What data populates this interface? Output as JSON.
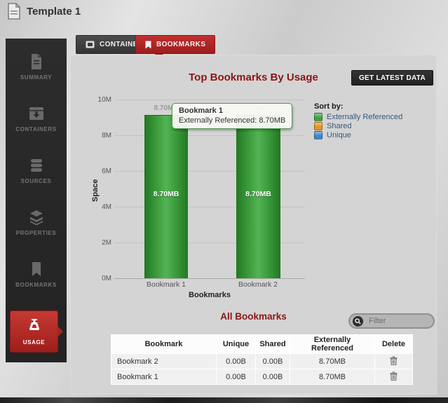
{
  "header": {
    "title": "Template 1"
  },
  "tabs": {
    "containers": "CONTAINERS",
    "bookmarks": "BOOKMARKS"
  },
  "sidebar": {
    "items": [
      {
        "label": "SUMMARY"
      },
      {
        "label": "CONTAINERS"
      },
      {
        "label": "SOURCES"
      },
      {
        "label": "PROPERTIES"
      },
      {
        "label": "BOOKMARKS"
      },
      {
        "label": "USAGE",
        "active": true
      }
    ]
  },
  "usage": {
    "chart_title": "Top Bookmarks By Usage",
    "get_latest_label": "GET LATEST DATA",
    "tooltip": {
      "title": "Bookmark 1",
      "detail": "Externally Referenced: 8.70MB"
    },
    "table": {
      "title": "All Bookmarks",
      "filter_placeholder": "Filter",
      "headers": [
        "Bookmark",
        "Unique",
        "Shared",
        "Externally Referenced",
        "Delete"
      ],
      "rows": [
        {
          "bookmark": "Bookmark 2",
          "unique": "0.00B",
          "shared": "0.00B",
          "externally_referenced": "8.70MB"
        },
        {
          "bookmark": "Bookmark 1",
          "unique": "0.00B",
          "shared": "0.00B",
          "externally_referenced": "8.70MB"
        }
      ]
    }
  },
  "chart_data": {
    "type": "bar",
    "title": "Top Bookmarks By Usage",
    "categories": [
      "Bookmark 1",
      "Bookmark 2"
    ],
    "series": [
      {
        "name": "Externally Referenced",
        "values_mb": [
          8.7,
          8.7
        ],
        "labels": [
          "8.70MB",
          "8.70MB"
        ],
        "color": "#2e9b2e"
      }
    ],
    "xlabel": "Bookmarks",
    "ylabel": "Space",
    "y_ticks": [
      "10M",
      "8M",
      "6M",
      "4M",
      "2M",
      "0M"
    ],
    "ylim_bytes": [
      0,
      10000000
    ],
    "grid": true,
    "legend": {
      "title": "Sort by:",
      "position": "right",
      "items": [
        {
          "label": "Externally Referenced",
          "color": "#3fa23f"
        },
        {
          "label": "Shared",
          "color": "#e8941e"
        },
        {
          "label": "Unique",
          "color": "#3b87c8"
        }
      ]
    }
  },
  "colors": {
    "accent_red": "#a32420",
    "title_red": "#8c1515",
    "bar_green": "#2e9b2e",
    "panel_gray": "#d4d4d4",
    "sidebar_dark": "#262626"
  }
}
